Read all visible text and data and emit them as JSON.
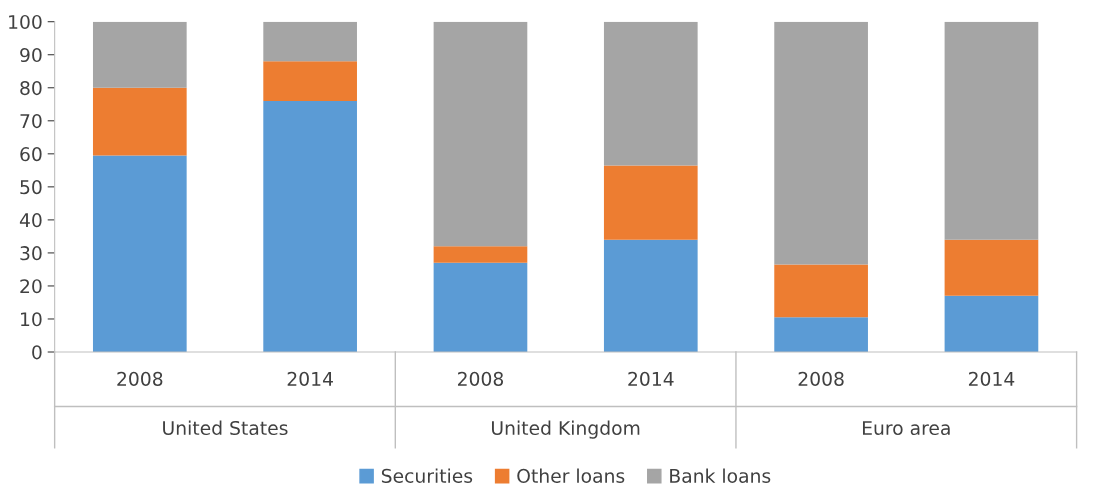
{
  "chart_data": {
    "type": "bar",
    "stacked": true,
    "categories": [
      "2008",
      "2014",
      "2008",
      "2014",
      "2008",
      "2014"
    ],
    "annotations": [
      "United States",
      "United Kingdom",
      "Euro area"
    ],
    "series": [
      {
        "name": "Securities",
        "color": "#5b9bd5",
        "values": [
          59.5,
          76,
          27,
          34,
          10.5,
          17
        ]
      },
      {
        "name": "Other loans",
        "color": "#ed7d31",
        "values": [
          20.5,
          12,
          5,
          22.5,
          16,
          17
        ]
      },
      {
        "name": "Bank loans",
        "color": "#a5a5a5",
        "values": [
          20,
          12,
          68,
          43.5,
          73.5,
          66
        ]
      }
    ],
    "ylim": [
      0,
      100
    ],
    "yticks": [
      0,
      10,
      20,
      30,
      40,
      50,
      60,
      70,
      80,
      90,
      100
    ],
    "grid": false,
    "legend": "bottom"
  }
}
